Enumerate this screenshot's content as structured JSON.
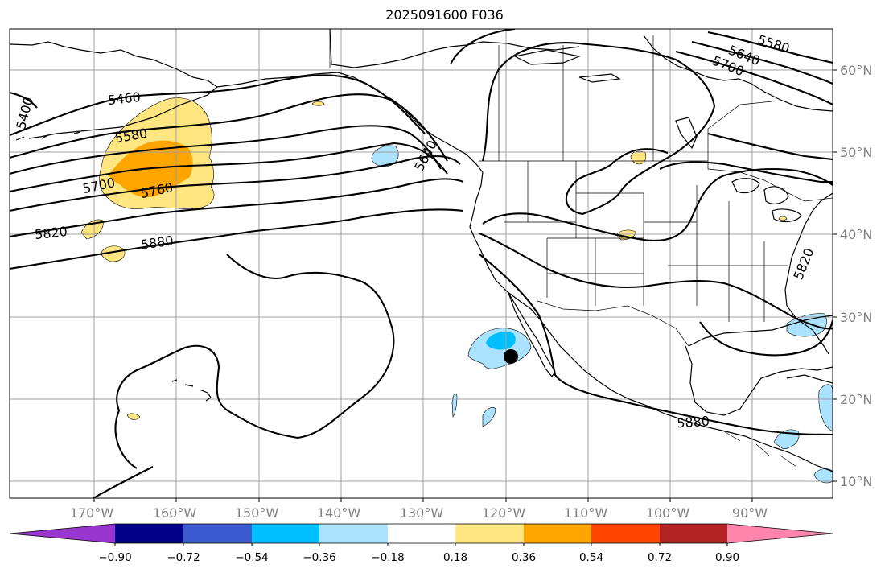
{
  "title": "2025091600 F036",
  "map": {
    "projection": "equirectangular",
    "lon_range": [
      -180,
      -80
    ],
    "lat_range": [
      8,
      65
    ],
    "longitude_labels": [
      "170°W",
      "160°W",
      "150°W",
      "140°W",
      "130°W",
      "120°W",
      "110°W",
      "100°W",
      "90°W"
    ],
    "latitude_labels": [
      "10°N",
      "20°N",
      "30°N",
      "40°N",
      "50°N",
      "60°N"
    ],
    "grid": true,
    "marker": {
      "lon": -119,
      "lat": 25,
      "color": "#000000"
    }
  },
  "contours": {
    "color": "#000000",
    "labels": [
      "5400",
      "5460",
      "5580",
      "5700",
      "5760",
      "5820",
      "5880",
      "5640",
      "5580",
      "5640",
      "5700",
      "5820",
      "5880"
    ]
  },
  "colorbar": {
    "colors": [
      "#9a36d0",
      "#00008b",
      "#3a5bcf",
      "#00bfff",
      "#abe2fd",
      "#ffffff",
      "#ffe680",
      "#ffa500",
      "#ff4500",
      "#b22222",
      "#ff85ad"
    ],
    "extend": "both",
    "tick_labels": [
      "−0.90",
      "−0.72",
      "−0.54",
      "−0.36",
      "−0.18",
      "0.18",
      "0.36",
      "0.54",
      "0.72",
      "0.90"
    ]
  }
}
